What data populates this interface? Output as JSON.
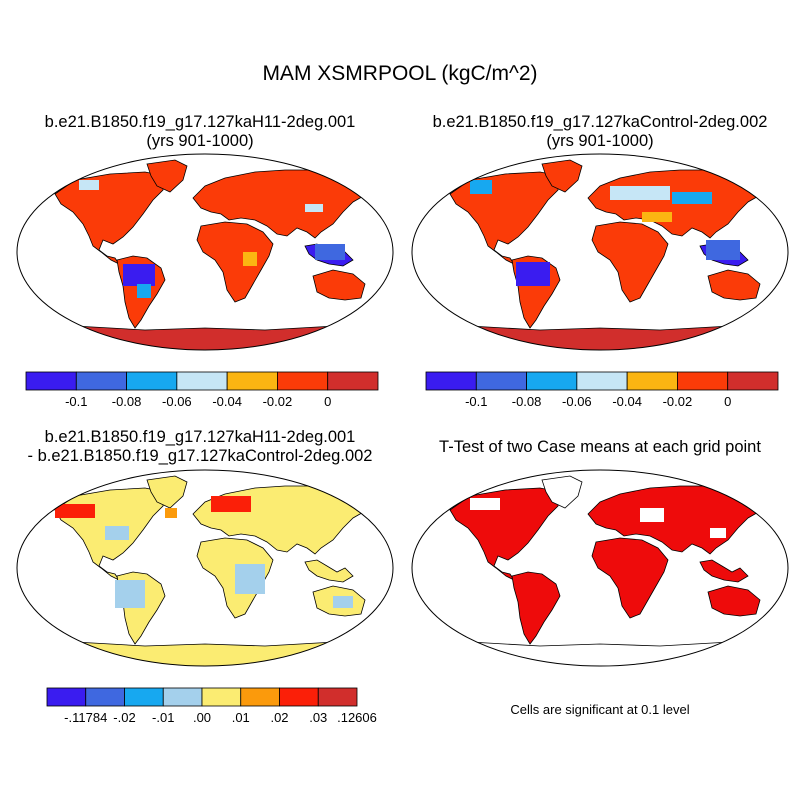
{
  "title": "MAM XSMRPOOL (kgC/m^2)",
  "colors": {
    "col7": [
      "#3a1cf0",
      "#3f68e0",
      "#17a8f0",
      "#c6e6f6",
      "#fbb512",
      "#fb3b08",
      "#d12e2c"
    ],
    "col8": [
      "#3a1cf0",
      "#3f68e0",
      "#17a8f0",
      "#a4d0ec",
      "#fbec72",
      "#fb9a0c",
      "#fb1f08",
      "#d12e2c"
    ],
    "significance": "#ee0b0b",
    "ocean": "#ffffff"
  },
  "panels": [
    {
      "id": "case1",
      "title_line1": "b.e21.B1850.f19_g17.127kaH11-2deg.001",
      "title_line2": "(yrs 901-1000)",
      "colorbar_labels": [
        "-0.1",
        "-0.08",
        "-0.06",
        "-0.04",
        "-0.02",
        "0"
      ]
    },
    {
      "id": "case2",
      "title_line1": "b.e21.B1850.f19_g17.127kaControl-2deg.002",
      "title_line2": "(yrs 901-1000)",
      "colorbar_labels": [
        "-0.1",
        "-0.08",
        "-0.06",
        "-0.04",
        "-0.02",
        "0"
      ]
    },
    {
      "id": "difference",
      "title_line1": "b.e21.B1850.f19_g17.127kaH11-2deg.001",
      "title_line2": "- b.e21.B1850.f19_g17.127kaControl-2deg.002",
      "colorbar_labels": [
        "-.11784",
        "-.02",
        "-.01",
        ".00",
        ".01",
        ".02",
        ".03",
        ".12606"
      ]
    },
    {
      "id": "ttest",
      "title_line1": "T-Test of two Case means at each grid point",
      "note": "Cells are significant at 0.1 level"
    }
  ]
}
